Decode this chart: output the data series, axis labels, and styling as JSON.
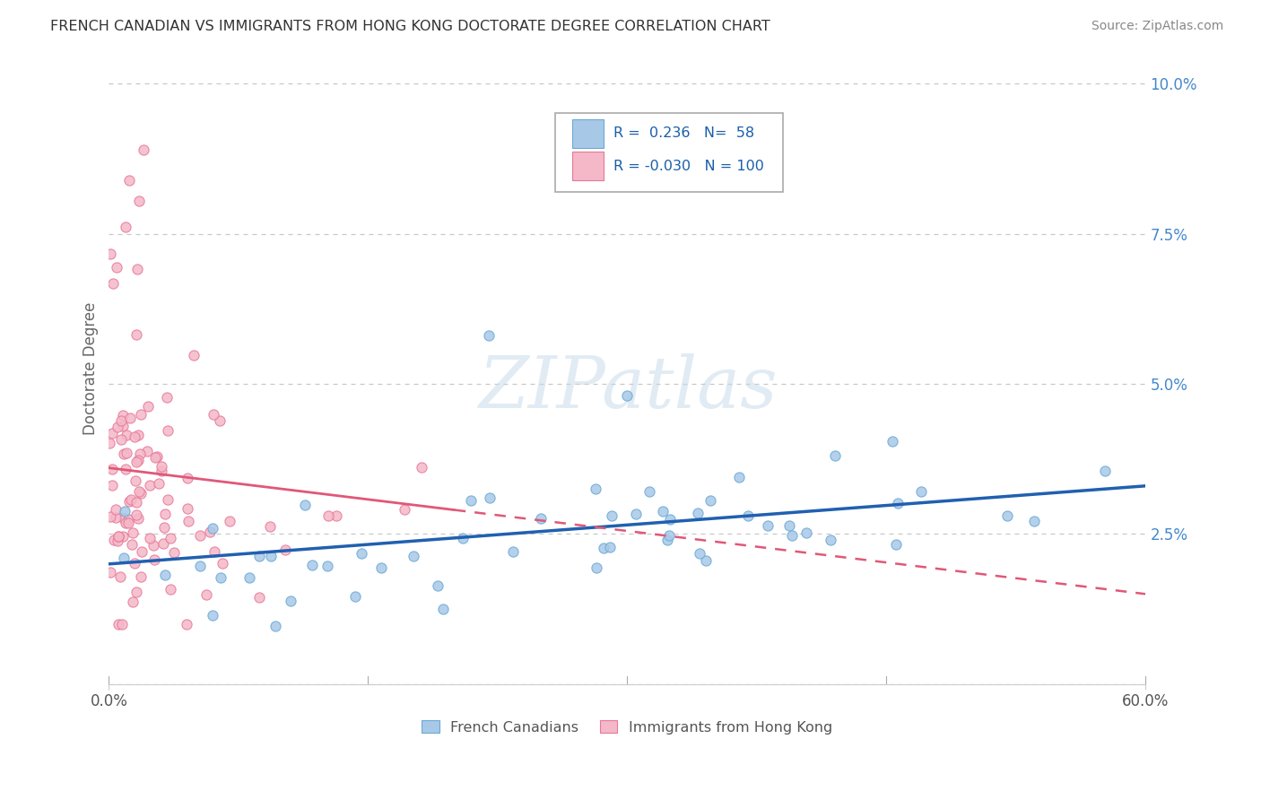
{
  "title": "FRENCH CANADIAN VS IMMIGRANTS FROM HONG KONG DOCTORATE DEGREE CORRELATION CHART",
  "source": "Source: ZipAtlas.com",
  "ylabel": "Doctorate Degree",
  "xlim": [
    0.0,
    0.6
  ],
  "ylim": [
    0.0,
    0.105
  ],
  "legend_r_blue": "0.236",
  "legend_n_blue": "58",
  "legend_r_pink": "-0.030",
  "legend_n_pink": "100",
  "watermark": "ZIPatlas",
  "blue_color": "#a8c8e8",
  "blue_edge_color": "#6aaad4",
  "pink_color": "#f4b8c8",
  "pink_edge_color": "#e87898",
  "blue_line_color": "#2060b0",
  "pink_line_color": "#e05878",
  "grid_color": "#c8c8c8",
  "yaxis_label_color": "#4488cc",
  "title_color": "#333333",
  "source_color": "#888888",
  "ytick_labels": [
    "",
    "2.5%",
    "5.0%",
    "7.5%",
    "10.0%"
  ],
  "ytick_positions": [
    0.0,
    0.025,
    0.05,
    0.075,
    0.1
  ]
}
